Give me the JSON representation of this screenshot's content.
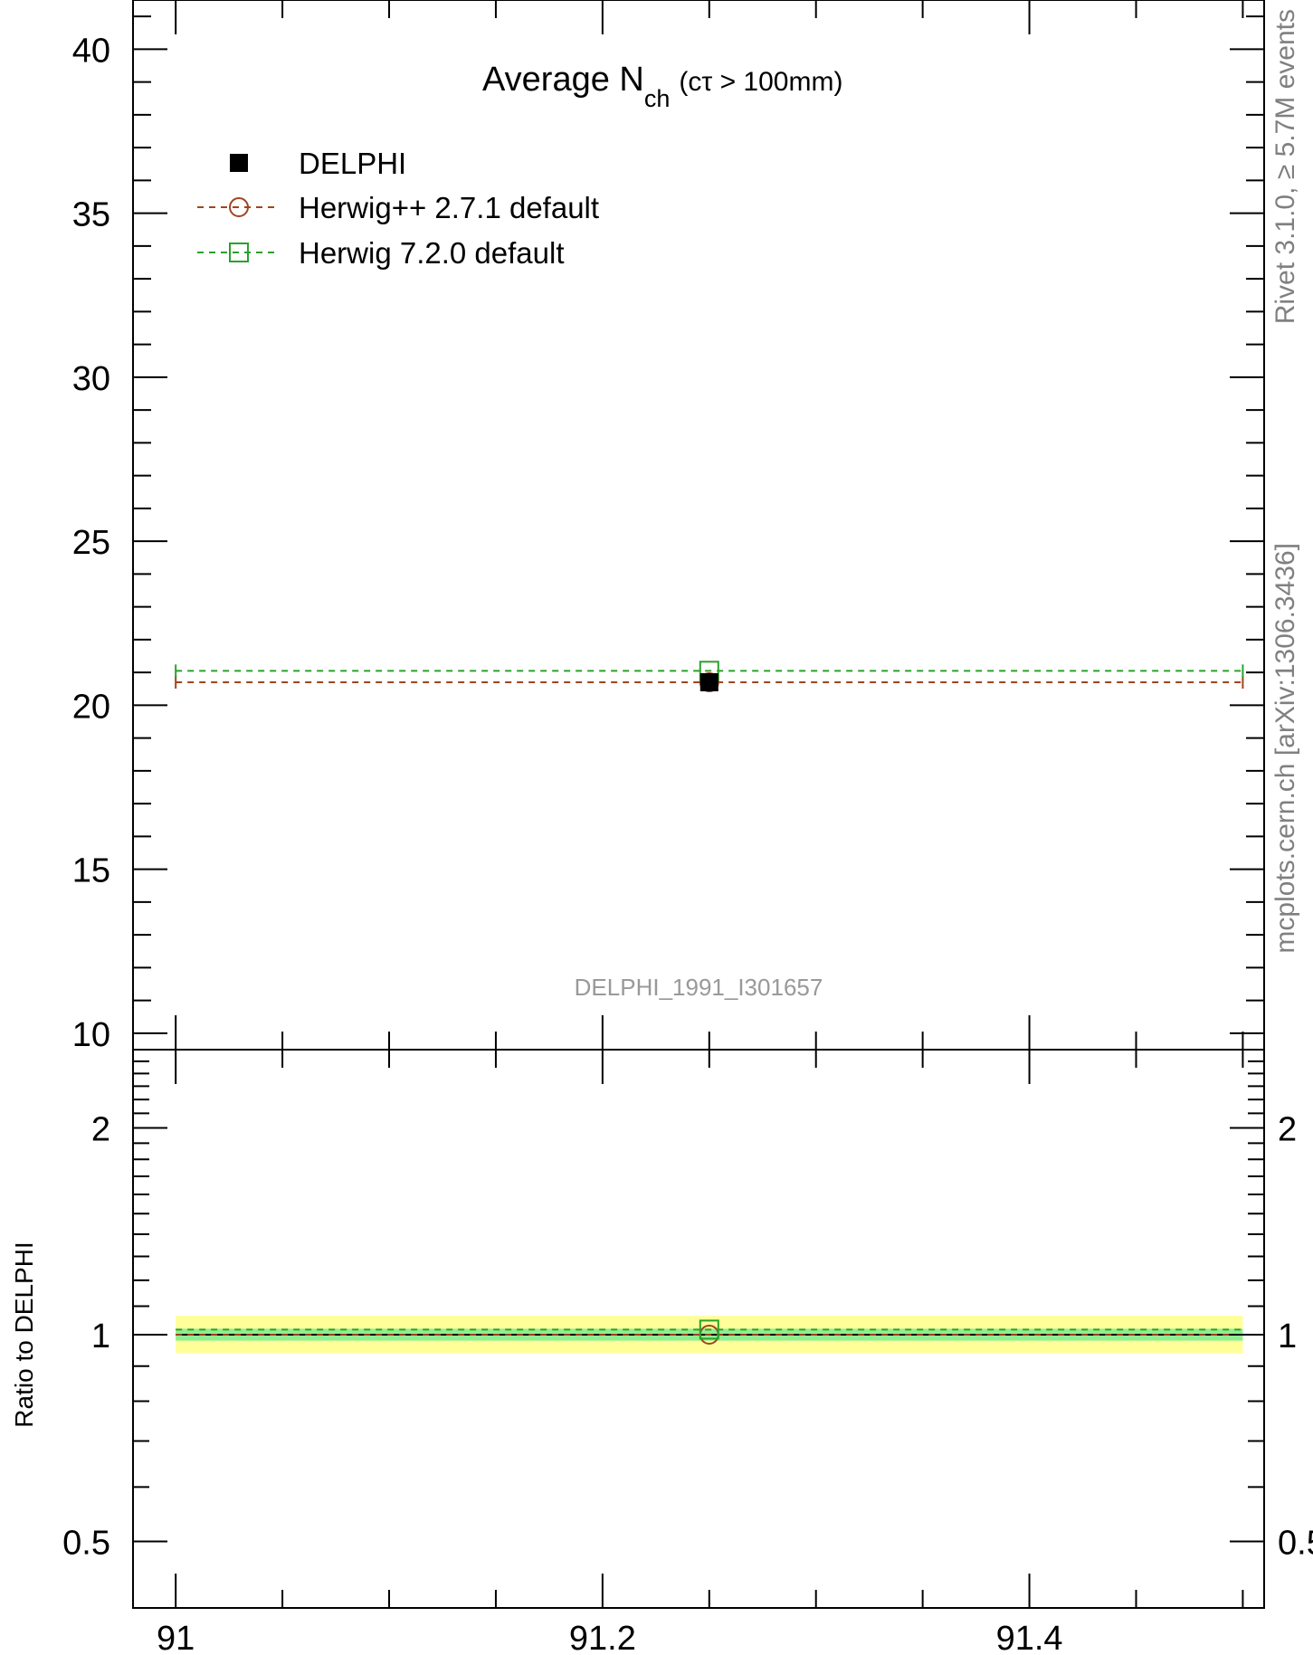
{
  "chart_data": [
    {
      "type": "scatter",
      "panel": "main",
      "title_main": "Average N",
      "title_sub": "ch",
      "title_suffix": "(cτ > 100mm)",
      "analysis_label": "DELPHI_1991_I301657",
      "xlim": [
        90.98,
        91.51
      ],
      "ylim": [
        9.5,
        41.5
      ],
      "ytick_values": [
        10,
        15,
        20,
        25,
        30,
        35,
        40
      ],
      "ytick_labels": [
        "10",
        "15",
        "20",
        "25",
        "30",
        "35",
        "40"
      ],
      "legend_position": "top-left",
      "series": [
        {
          "name": "DELPHI",
          "color": "#000000",
          "marker": "filled-square",
          "line": "none",
          "x": [
            91.25
          ],
          "y": [
            20.7
          ],
          "yerr": [
            0.2
          ]
        },
        {
          "name": "Herwig++ 2.7.1 default",
          "color": "#a0451e",
          "marker": "open-circle",
          "line": "dashed",
          "xrange": [
            91.0,
            91.5
          ],
          "x": [
            91.25
          ],
          "y": [
            20.7
          ]
        },
        {
          "name": "Herwig 7.2.0 default",
          "color": "#2ca02c",
          "marker": "open-square",
          "line": "dashed",
          "xrange": [
            91.0,
            91.5
          ],
          "x": [
            91.25
          ],
          "y": [
            21.05
          ]
        }
      ]
    },
    {
      "type": "scatter",
      "panel": "ratio",
      "ylabel": "Ratio to DELPHI",
      "scale": "log",
      "xlim": [
        90.98,
        91.51
      ],
      "ylim": [
        0.4,
        2.6
      ],
      "xtick_values": [
        91.0,
        91.2,
        91.4
      ],
      "xtick_labels": [
        "91",
        "91.2",
        "91.4"
      ],
      "ytick_values": [
        0.5,
        1,
        2
      ],
      "ytick_labels": [
        "0.5",
        "1",
        "2"
      ],
      "bands": [
        {
          "color": "#ffff99",
          "low": 0.94,
          "high": 1.065
        },
        {
          "color": "#90ee90",
          "low": 0.98,
          "high": 1.02
        }
      ],
      "series": [
        {
          "name": "Herwig++ 2.7.1 default",
          "color": "#a0451e",
          "marker": "open-circle",
          "x": [
            91.25
          ],
          "y": [
            1.0
          ]
        },
        {
          "name": "Herwig 7.2.0 default",
          "color": "#2ca02c",
          "marker": "open-square",
          "x": [
            91.25
          ],
          "y": [
            1.017
          ]
        }
      ]
    }
  ],
  "side_text": {
    "rivet": "Rivet 3.1.0, ≥ 5.7M events",
    "mcplots": "mcplots.cern.ch [arXiv:1306.3436]"
  },
  "colors": {
    "axis": "#000000",
    "side_text": "#808080",
    "analysis_label": "#999999"
  }
}
